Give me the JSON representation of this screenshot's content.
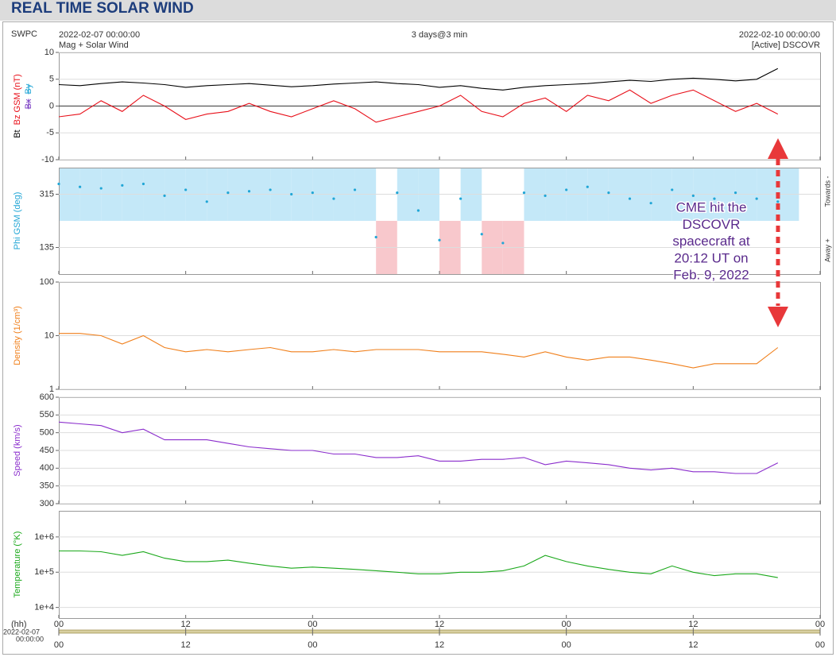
{
  "header": {
    "title": "REAL TIME SOLAR WIND"
  },
  "source": "SWPC",
  "start": "2022-02-07 00:00:00",
  "span": "3 days@3 min",
  "end": "2022-02-10 00:00:00",
  "product": "Mag + Solar Wind",
  "spacecraft": "[Active] DSCOVR",
  "x_unit": "(hh)",
  "x_start_date": "2022-02-07",
  "x_start_time": "00:00:00",
  "annotation": [
    "CME hit the",
    "DSCOVR",
    "spacecraft at",
    "20:12 UT on",
    "Feb. 9, 2022"
  ],
  "chart_data": [
    {
      "type": "line",
      "zero_line": true,
      "ylim": [
        -10,
        10
      ],
      "yticks": [
        -10,
        -5,
        0,
        5,
        10
      ],
      "xlim": [
        0,
        72
      ],
      "xticks": [
        {
          "value": 0,
          "label": "00"
        },
        {
          "value": 12,
          "label": "12"
        },
        {
          "value": 24,
          "label": "00"
        },
        {
          "value": 36,
          "label": "12"
        },
        {
          "value": 48,
          "label": "00"
        },
        {
          "value": 60,
          "label": "12"
        },
        {
          "value": 72,
          "label": "00"
        }
      ],
      "x": [
        0,
        2,
        4,
        6,
        8,
        10,
        12,
        14,
        16,
        18,
        20,
        22,
        24,
        26,
        28,
        30,
        32,
        34,
        36,
        38,
        40,
        42,
        44,
        46,
        48,
        50,
        52,
        54,
        56,
        58,
        60,
        62,
        64,
        66,
        68
      ],
      "series": [
        {
          "name": "Bt",
          "color": "#000000",
          "values": [
            4,
            3.8,
            4.2,
            4.5,
            4.3,
            4,
            3.5,
            3.8,
            4,
            4.2,
            3.9,
            3.6,
            3.8,
            4.1,
            4.3,
            4.5,
            4.2,
            4,
            3.5,
            3.8,
            3.3,
            3,
            3.5,
            3.8,
            4,
            4.2,
            4.5,
            4.8,
            4.6,
            5,
            5.2,
            5,
            4.7,
            5,
            7
          ]
        },
        {
          "name": "Bz GSM (nT)",
          "color": "#e8101a",
          "values": [
            -2,
            -1.5,
            1,
            -1,
            2,
            0,
            -2.5,
            -1.5,
            -1,
            0.5,
            -1,
            -2,
            -0.5,
            1,
            -0.5,
            -3,
            -2,
            -1,
            0,
            2,
            -1,
            -2,
            0.5,
            1.5,
            -1,
            2,
            1,
            3,
            0.5,
            2,
            3,
            1,
            -1,
            0.5,
            -1.5
          ]
        }
      ],
      "disabled_labels": [
        {
          "text": "Bx",
          "color": "#7b3fc4"
        },
        {
          "text": "By",
          "color": "#21a6d6"
        }
      ]
    },
    {
      "type": "scatter",
      "ylabel": "Phi GSM (deg)",
      "ylabel_color": "#21a6d6",
      "sector_colors": [
        "#c4e8f8",
        "#f8c8cc"
      ],
      "right_labels": [
        "Towards -",
        "Away +"
      ],
      "ylim": [
        45,
        405
      ],
      "yticks": [
        135,
        315
      ],
      "xlim": [
        0,
        72
      ],
      "xticks": [
        {
          "value": 0,
          "label": "00"
        },
        {
          "value": 12,
          "label": "12"
        },
        {
          "value": 24,
          "label": "00"
        },
        {
          "value": 36,
          "label": "12"
        },
        {
          "value": 48,
          "label": "00"
        },
        {
          "value": 60,
          "label": "12"
        },
        {
          "value": 72,
          "label": "00"
        }
      ],
      "x": [
        0,
        2,
        4,
        6,
        8,
        10,
        12,
        14,
        16,
        18,
        20,
        22,
        24,
        26,
        28,
        30,
        32,
        34,
        36,
        38,
        40,
        42,
        44,
        46,
        48,
        50,
        52,
        54,
        56,
        58,
        60,
        62,
        64,
        66,
        68
      ],
      "series": [
        {
          "name": "Phi",
          "color": "#21a6d6",
          "values": [
            350,
            340,
            335,
            345,
            350,
            310,
            330,
            290,
            320,
            325,
            330,
            315,
            320,
            300,
            330,
            170,
            320,
            260,
            160,
            300,
            180,
            150,
            320,
            310,
            330,
            340,
            320,
            300,
            285,
            330,
            310,
            300,
            320,
            300,
            290
          ]
        }
      ]
    },
    {
      "type": "line",
      "log": true,
      "ylabel": "Density (1/cm³)",
      "ylabel_color": "#f07f1a",
      "ylim": [
        1,
        100
      ],
      "yticks": [
        1,
        10,
        100
      ],
      "xlim": [
        0,
        72
      ],
      "xticks": [
        {
          "value": 0,
          "label": "00"
        },
        {
          "value": 12,
          "label": "12"
        },
        {
          "value": 24,
          "label": "00"
        },
        {
          "value": 36,
          "label": "12"
        },
        {
          "value": 48,
          "label": "00"
        },
        {
          "value": 60,
          "label": "12"
        },
        {
          "value": 72,
          "label": "00"
        }
      ],
      "x": [
        0,
        2,
        4,
        6,
        8,
        10,
        12,
        14,
        16,
        18,
        20,
        22,
        24,
        26,
        28,
        30,
        32,
        34,
        36,
        38,
        40,
        42,
        44,
        46,
        48,
        50,
        52,
        54,
        56,
        58,
        60,
        62,
        64,
        66,
        68
      ],
      "series": [
        {
          "name": "Density",
          "color": "#f07f1a",
          "values": [
            11,
            11,
            10,
            7,
            10,
            6,
            5,
            5.5,
            5,
            5.5,
            6,
            5,
            5,
            5.5,
            5,
            5.5,
            5.5,
            5.5,
            5,
            5,
            5,
            4.5,
            4,
            5,
            4,
            3.5,
            4,
            4,
            3.5,
            3,
            2.5,
            3,
            3,
            3,
            6
          ]
        }
      ]
    },
    {
      "type": "line",
      "ylabel": "Speed (km/s)",
      "ylabel_color": "#8a2ccc",
      "ylim": [
        300,
        600
      ],
      "yticks": [
        300,
        350,
        400,
        450,
        500,
        550,
        600
      ],
      "xlim": [
        0,
        72
      ],
      "xticks": [
        {
          "value": 0,
          "label": "00"
        },
        {
          "value": 12,
          "label": "12"
        },
        {
          "value": 24,
          "label": "00"
        },
        {
          "value": 36,
          "label": "12"
        },
        {
          "value": 48,
          "label": "00"
        },
        {
          "value": 60,
          "label": "12"
        },
        {
          "value": 72,
          "label": "00"
        }
      ],
      "x": [
        0,
        2,
        4,
        6,
        8,
        10,
        12,
        14,
        16,
        18,
        20,
        22,
        24,
        26,
        28,
        30,
        32,
        34,
        36,
        38,
        40,
        42,
        44,
        46,
        48,
        50,
        52,
        54,
        56,
        58,
        60,
        62,
        64,
        66,
        68
      ],
      "series": [
        {
          "name": "Speed",
          "color": "#8a2ccc",
          "values": [
            530,
            525,
            520,
            500,
            510,
            480,
            480,
            480,
            470,
            460,
            455,
            450,
            450,
            440,
            440,
            430,
            430,
            435,
            420,
            420,
            425,
            425,
            430,
            410,
            420,
            415,
            410,
            400,
            395,
            400,
            390,
            390,
            385,
            385,
            415
          ]
        }
      ]
    },
    {
      "type": "line",
      "log": true,
      "ylabel": "Temperature (°K)",
      "ylabel_color": "#1aa81a",
      "ylim": [
        5000,
        5500000
      ],
      "yticks": [
        {
          "value": 10000,
          "label": "1e+4"
        },
        {
          "value": 100000,
          "label": "1e+5"
        },
        {
          "value": 1000000,
          "label": "1e+6"
        }
      ],
      "xlim": [
        0,
        72
      ],
      "xticks": [
        {
          "value": 0,
          "label": "00"
        },
        {
          "value": 12,
          "label": "12"
        },
        {
          "value": 24,
          "label": "00"
        },
        {
          "value": 36,
          "label": "12"
        },
        {
          "value": 48,
          "label": "00"
        },
        {
          "value": 60,
          "label": "12"
        },
        {
          "value": 72,
          "label": "00"
        }
      ],
      "x": [
        0,
        2,
        4,
        6,
        8,
        10,
        12,
        14,
        16,
        18,
        20,
        22,
        24,
        26,
        28,
        30,
        32,
        34,
        36,
        38,
        40,
        42,
        44,
        46,
        48,
        50,
        52,
        54,
        56,
        58,
        60,
        62,
        64,
        66,
        68
      ],
      "series": [
        {
          "name": "Temperature",
          "color": "#1aa81a",
          "values": [
            400000,
            400000,
            380000,
            300000,
            380000,
            250000,
            200000,
            200000,
            220000,
            180000,
            150000,
            130000,
            140000,
            130000,
            120000,
            110000,
            100000,
            90000,
            90000,
            100000,
            100000,
            110000,
            150000,
            300000,
            200000,
            150000,
            120000,
            100000,
            90000,
            150000,
            100000,
            80000,
            90000,
            90000,
            70000
          ]
        }
      ]
    }
  ]
}
